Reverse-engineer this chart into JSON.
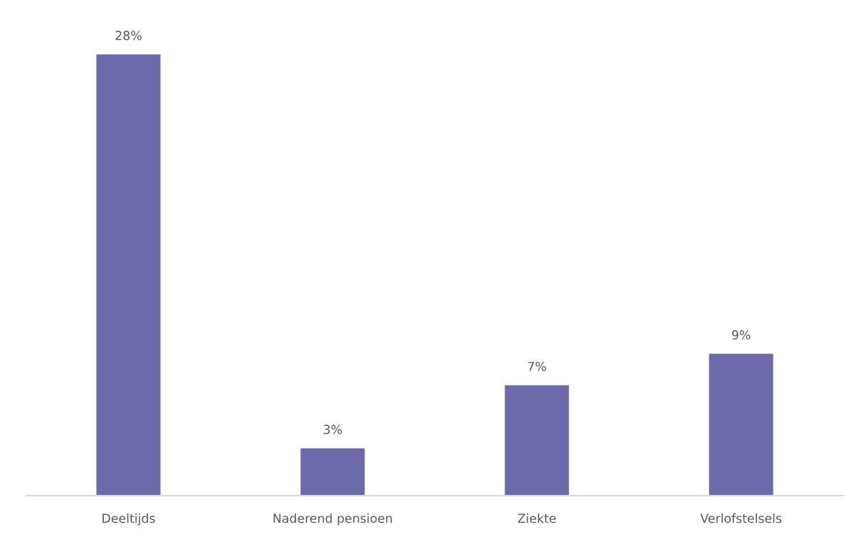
{
  "chart_data": {
    "type": "bar",
    "categories": [
      "Deeltijds",
      "Naderend pensioen",
      "Ziekte",
      "Verlofstelsels"
    ],
    "values": [
      28,
      3,
      7,
      9
    ],
    "value_labels": [
      "28%",
      "3%",
      "7%",
      "9%"
    ],
    "color": "#6c6aaa"
  }
}
